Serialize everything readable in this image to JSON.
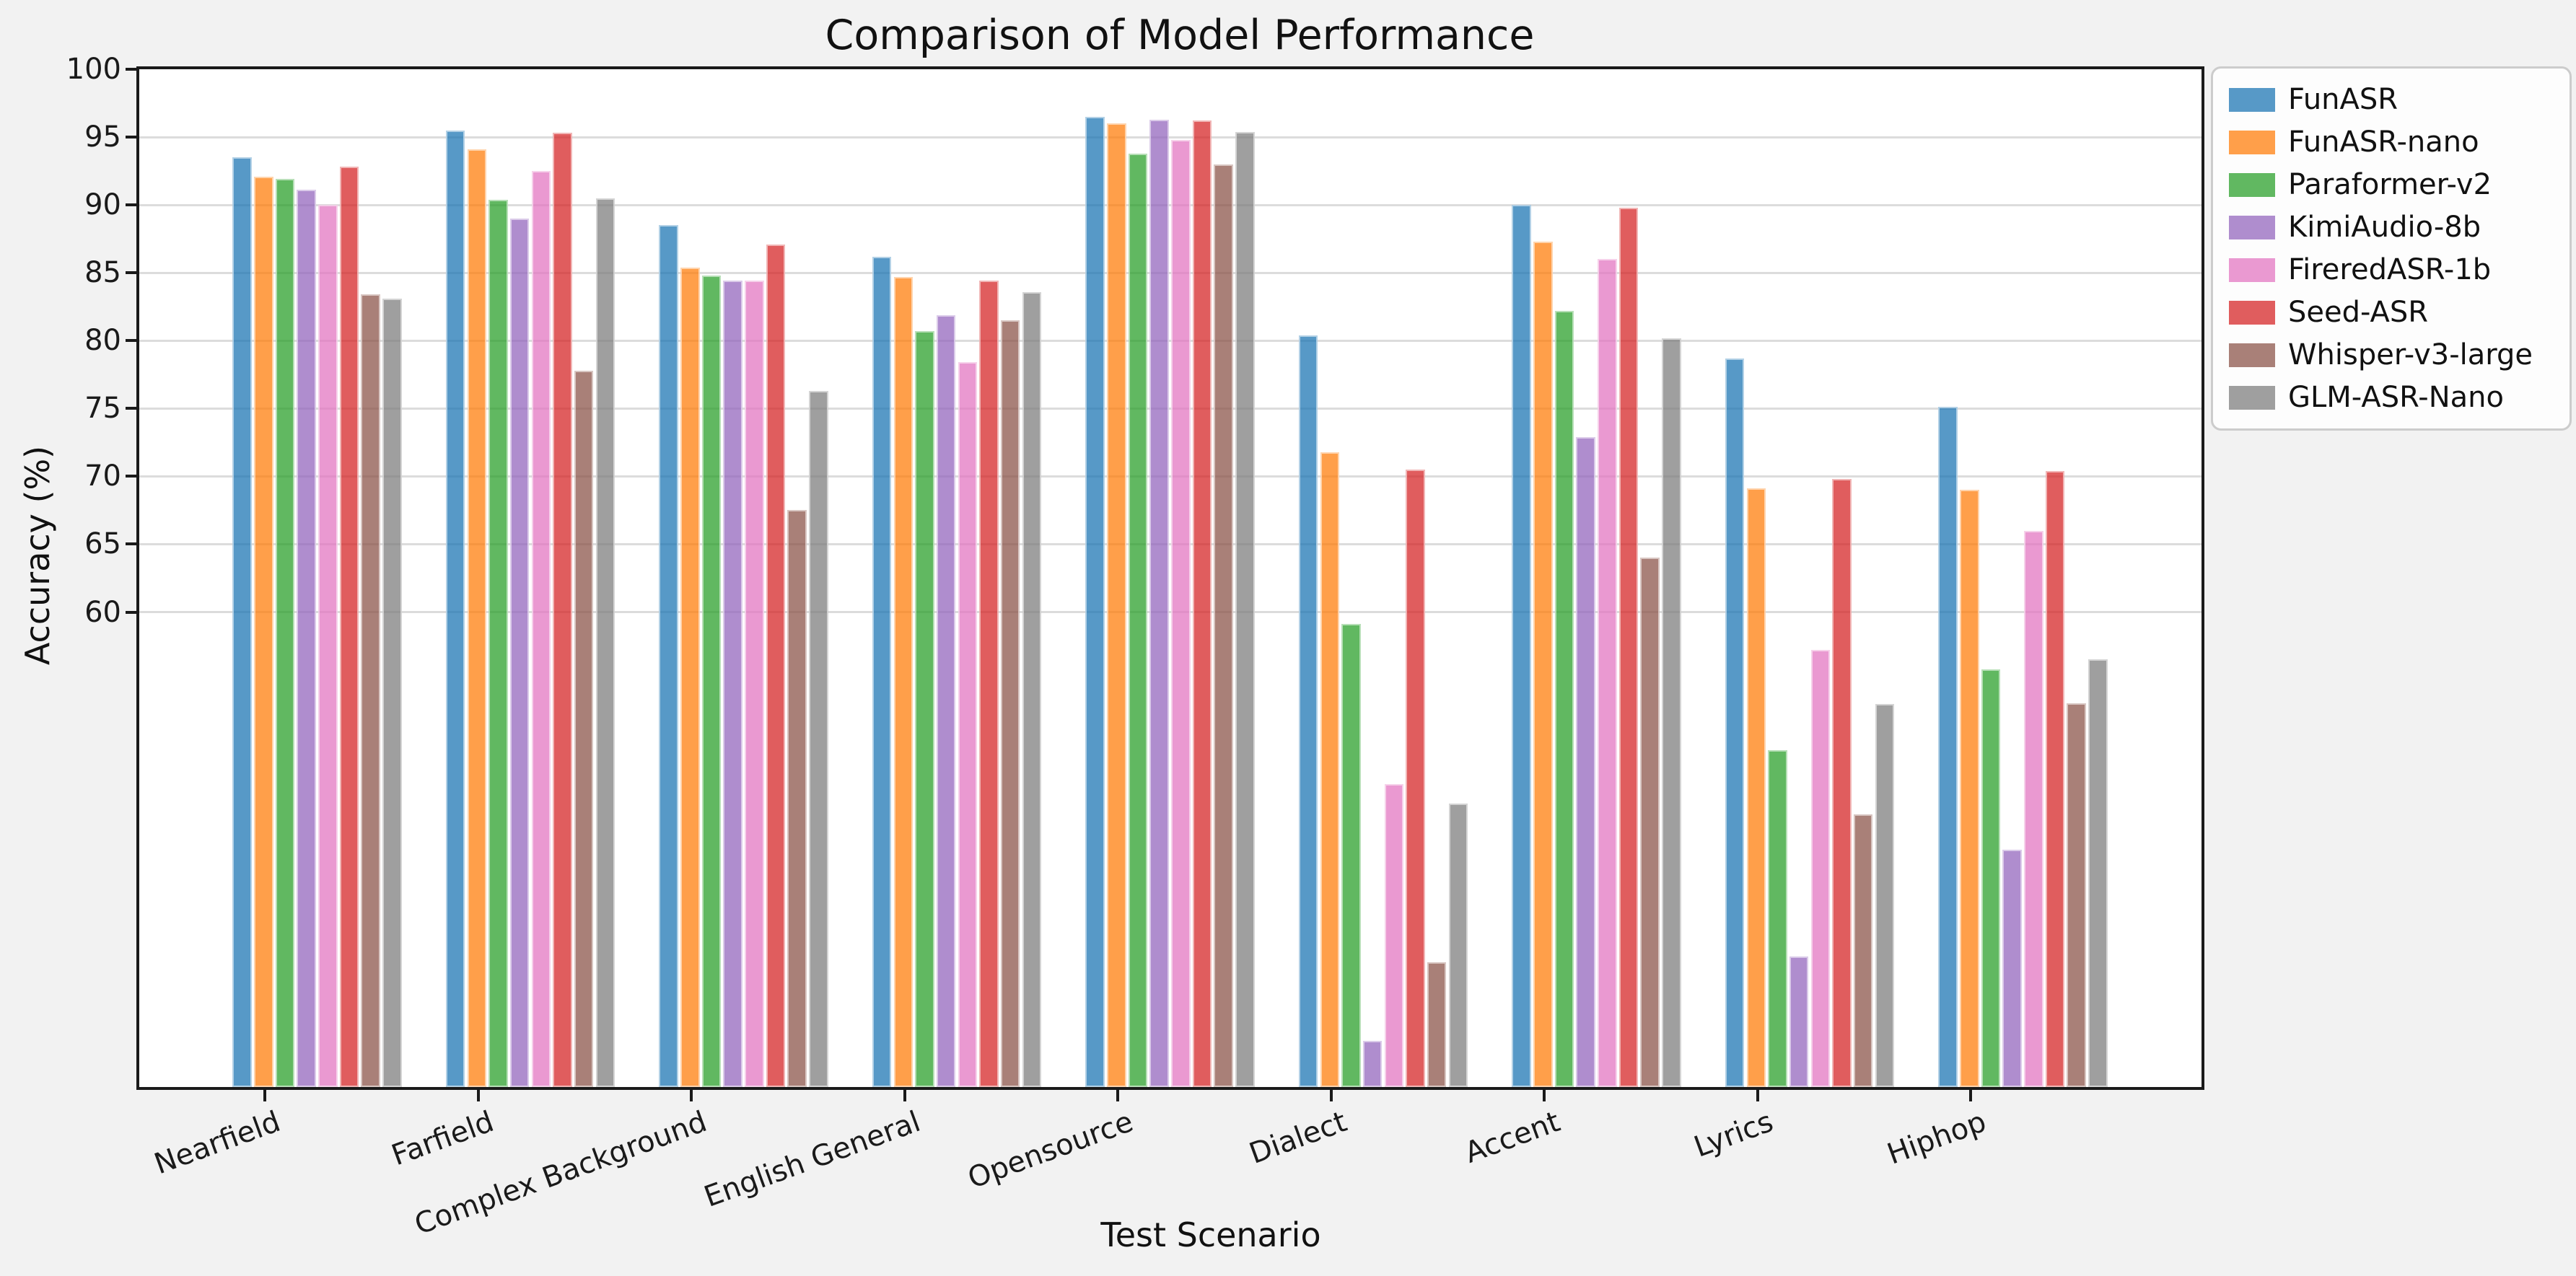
{
  "figure": {
    "background": "#f2f2f2",
    "plot_background": "#ffffff"
  },
  "chart_data": {
    "type": "bar",
    "title": "Comparison of Model Performance",
    "xlabel": "Test Scenario",
    "ylabel": "Accuracy (%)",
    "categories": [
      "Nearfield",
      "Farfield",
      "Complex Background",
      "English General",
      "Opensource",
      "Dialect",
      "Accent",
      "Lyrics",
      "Hiphop"
    ],
    "series": [
      {
        "name": "FunASR",
        "color": "#1f77b4",
        "values": [
          93.5,
          95.5,
          88.5,
          86.2,
          96.5,
          80.4,
          90.0,
          78.7,
          75.1
        ]
      },
      {
        "name": "FunASR-nano",
        "color": "#ff7f0e",
        "values": [
          92.1,
          94.1,
          85.4,
          84.7,
          96.0,
          71.8,
          87.3,
          69.1,
          69.0
        ]
      },
      {
        "name": "Paraformer-v2",
        "color": "#2ca02c",
        "values": [
          91.9,
          90.4,
          84.8,
          80.7,
          93.8,
          59.1,
          82.2,
          49.8,
          55.8
        ]
      },
      {
        "name": "KimiAudio-8b",
        "color": "#9467bd",
        "values": [
          91.1,
          89.0,
          84.4,
          81.9,
          96.3,
          28.4,
          72.9,
          34.6,
          42.5
        ]
      },
      {
        "name": "FireredASR-1b",
        "color": "#e377c2",
        "values": [
          90.0,
          92.5,
          84.4,
          78.4,
          94.8,
          47.3,
          86.0,
          57.2,
          66.0
        ]
      },
      {
        "name": "Seed-ASR",
        "color": "#d62728",
        "values": [
          92.8,
          95.3,
          87.1,
          84.4,
          96.2,
          70.5,
          89.8,
          69.8,
          70.4
        ]
      },
      {
        "name": "Whisper-v3-large",
        "color": "#8c564b",
        "values": [
          83.4,
          77.8,
          67.5,
          81.5,
          93.0,
          34.2,
          64.0,
          45.1,
          53.3
        ]
      },
      {
        "name": "GLM-ASR-Nano",
        "color": "#7f7f7f",
        "values": [
          83.1,
          90.5,
          76.3,
          83.6,
          95.4,
          45.9,
          80.2,
          53.2,
          56.5
        ]
      }
    ],
    "bar_alpha": 0.75,
    "ylim": [
      25,
      100
    ],
    "yticks": [
      100,
      95,
      90,
      85,
      80,
      75,
      70,
      65,
      60
    ],
    "grid": {
      "axis": "y",
      "color": "#dcdcdc"
    },
    "legend": {
      "position": "outside-upper-right"
    }
  }
}
